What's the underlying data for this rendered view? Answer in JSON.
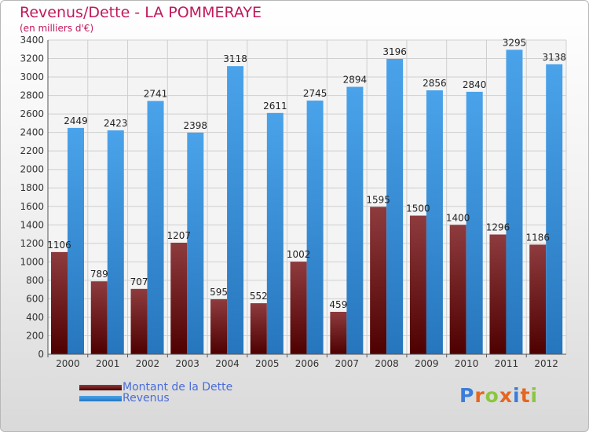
{
  "header": {
    "title": "Revenus/Dette - LA POMMERAYE",
    "subtitle": "(en milliers d'€)"
  },
  "brand": {
    "logo_letters": [
      "P",
      "r",
      "o",
      "x",
      "i",
      "t",
      "i"
    ],
    "logo_colors": [
      "#3b7dd8",
      "#e6661e",
      "#8cc63f",
      "#e6661e",
      "#3b7dd8",
      "#e6661e",
      "#8cc63f"
    ]
  },
  "colors": {
    "dette": "#7a1f22",
    "revenus": "#2f8fdb",
    "gridline": "#cfcfcf"
  },
  "chart_data": {
    "type": "bar",
    "title": "Revenus/Dette - LA POMMERAYE",
    "subtitle": "(en milliers d'€)",
    "xlabel": "",
    "ylabel": "",
    "categories": [
      "2000",
      "2001",
      "2002",
      "2003",
      "2004",
      "2005",
      "2006",
      "2007",
      "2008",
      "2009",
      "2010",
      "2011",
      "2012"
    ],
    "series": [
      {
        "name": "Montant de la Dette",
        "color": "#7a1f22",
        "values": [
          1106,
          789,
          707,
          1207,
          595,
          552,
          1002,
          459,
          1595,
          1500,
          1400,
          1296,
          1186
        ]
      },
      {
        "name": "Revenus",
        "color": "#2f8fdb",
        "values": [
          2449,
          2423,
          2741,
          2398,
          3118,
          2611,
          2745,
          2894,
          3196,
          2856,
          2840,
          3295,
          3138
        ]
      }
    ],
    "data_labels": [
      [
        "1106",
        "789",
        "707",
        "1207",
        "595",
        "552",
        "1002",
        "459",
        "1595",
        "1500",
        "1400",
        "1296",
        "1186"
      ],
      [
        "2449",
        "2423",
        "2741",
        "2398",
        "3118",
        "2611",
        "2745",
        "2894",
        "3196",
        "2856",
        "2840",
        "3295",
        "3138"
      ]
    ],
    "ylim": [
      0,
      3400
    ],
    "yticks": [
      0,
      200,
      400,
      600,
      800,
      1000,
      1200,
      1400,
      1600,
      1800,
      2000,
      2200,
      2400,
      2600,
      2800,
      3000,
      3200,
      3400
    ],
    "grid": true,
    "legend_position": "bottom-left"
  }
}
